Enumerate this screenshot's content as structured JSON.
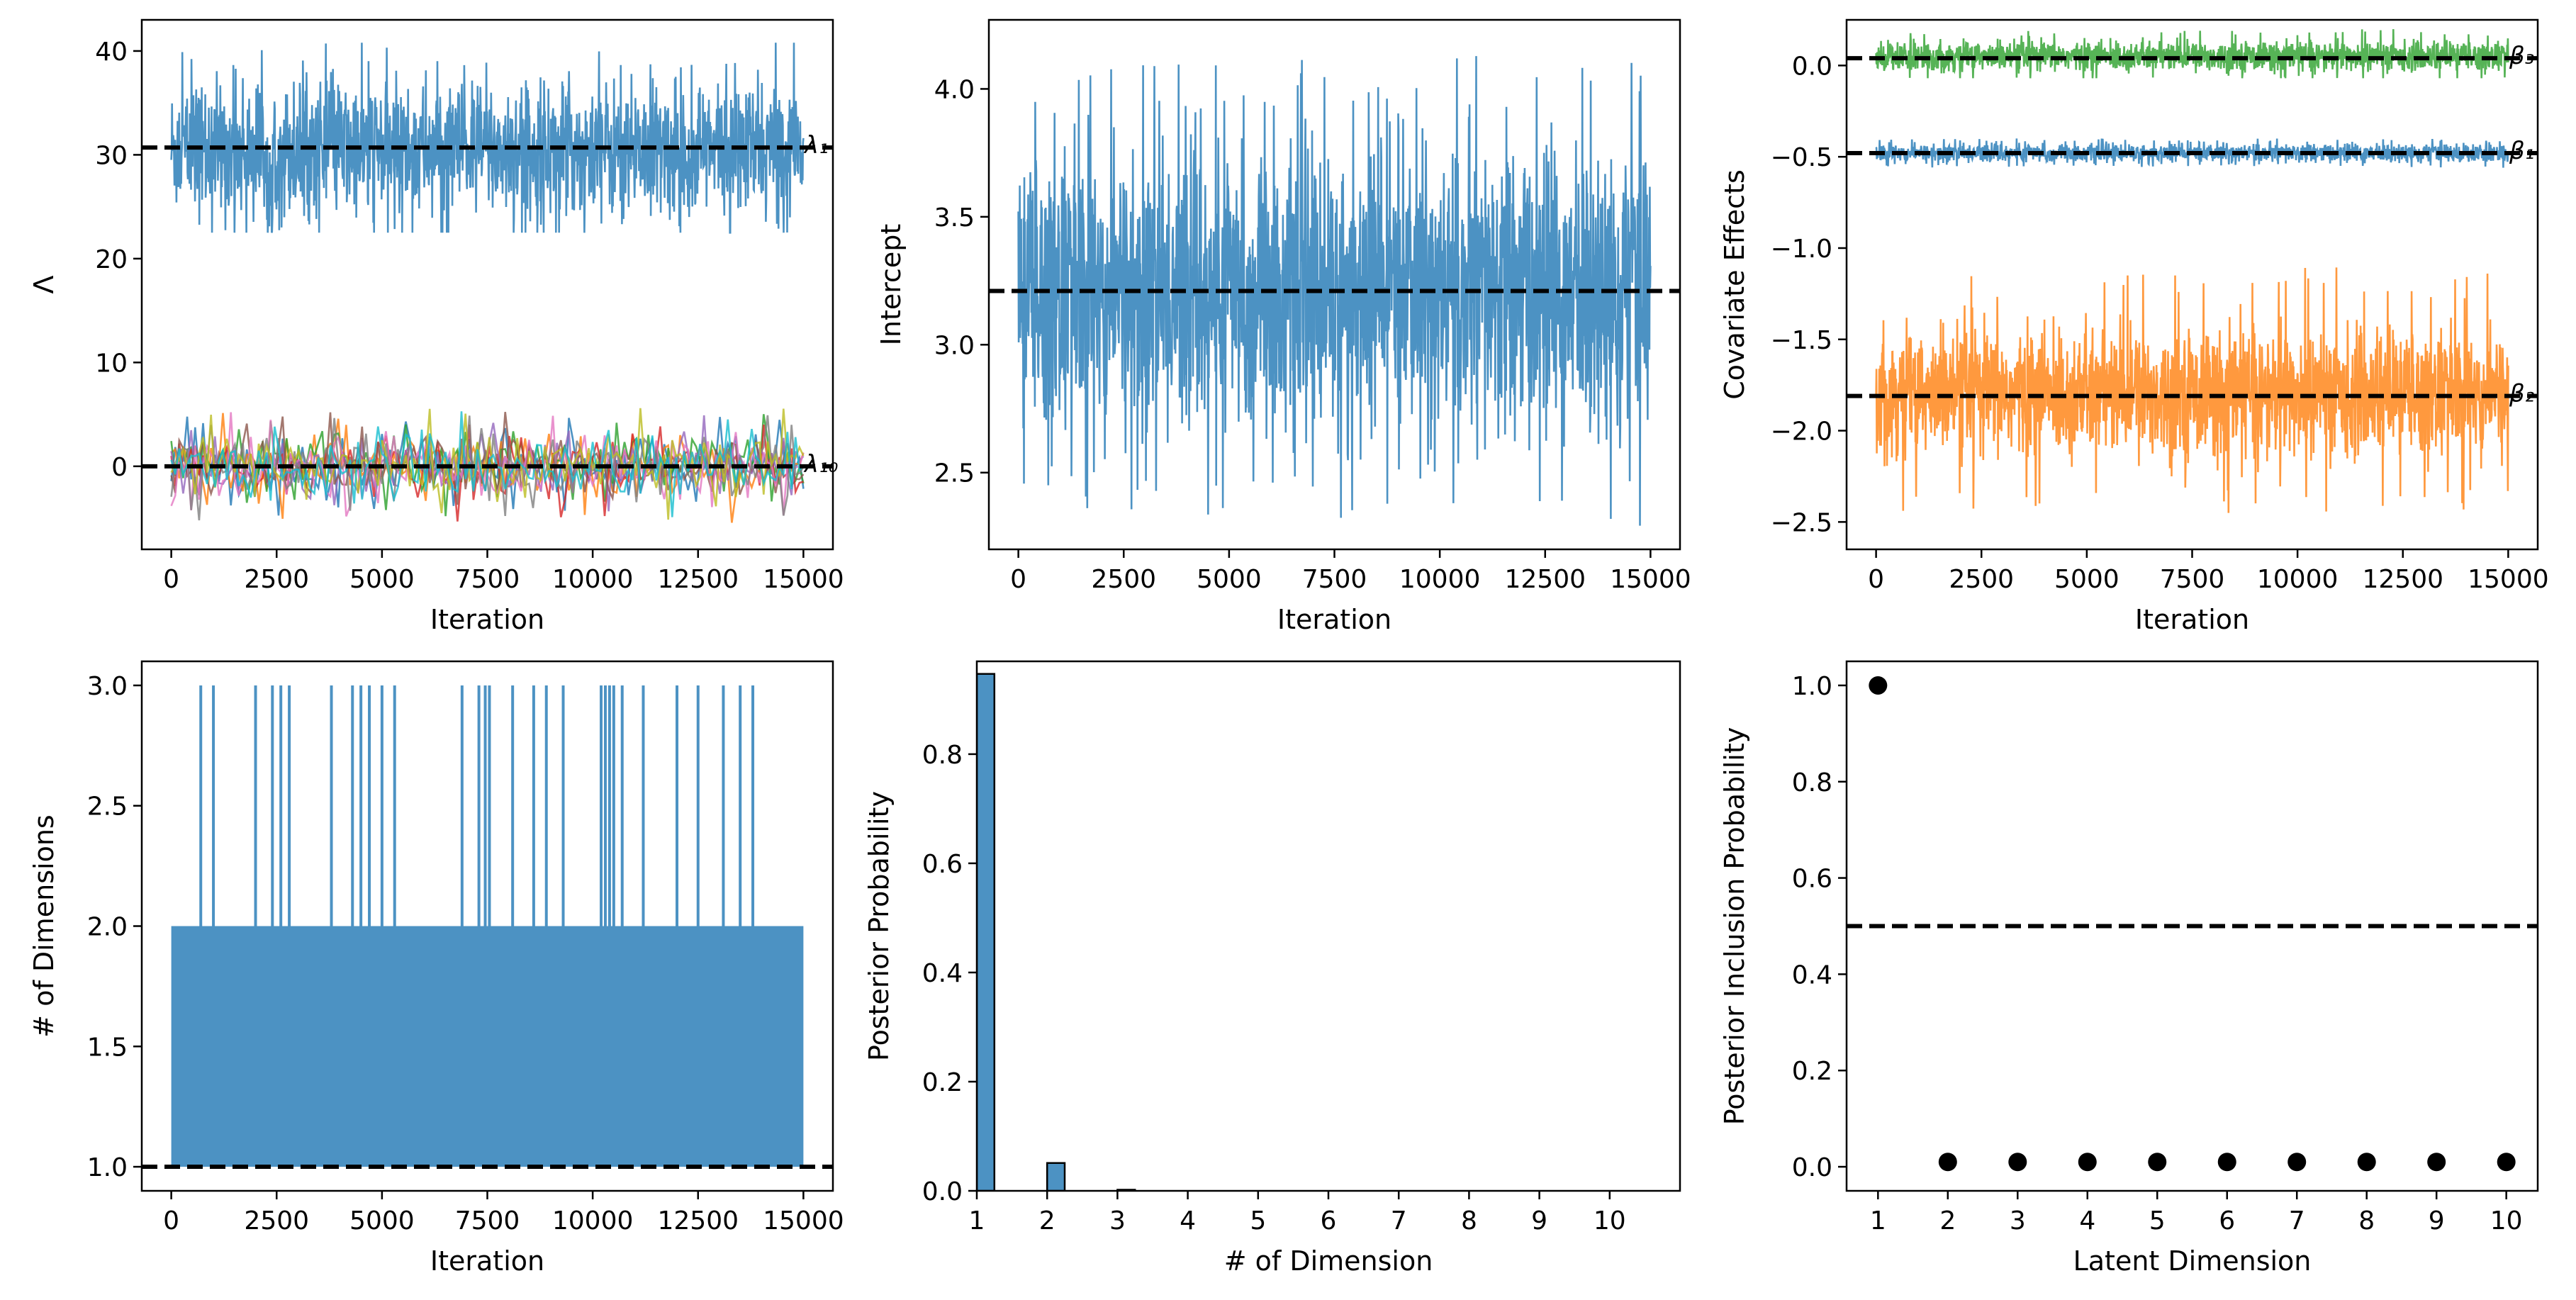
{
  "chart_data": [
    {
      "id": "lambda",
      "type": "line",
      "xlabel": "Iteration",
      "ylabel": "Λ",
      "xlim": [
        -700,
        15700
      ],
      "ylim": [
        -8,
        43
      ],
      "xticks": [
        0,
        2500,
        5000,
        7500,
        10000,
        12500,
        15000
      ],
      "yticks": [
        0,
        10,
        20,
        30,
        40
      ],
      "iterations": [
        0,
        15000
      ],
      "series": [
        {
          "name": "λ1",
          "center": 30.5,
          "spread": 3.2,
          "min": 22.5,
          "max": 40.8,
          "color": "#1f77b4"
        },
        {
          "name": "λ2..λ10",
          "center": 0.0,
          "spread": 1.6,
          "min": -5.5,
          "max": 5.6,
          "colors": [
            "#1f77b4",
            "#ff7f0e",
            "#2ca02c",
            "#d62728",
            "#9467bd",
            "#8c564b",
            "#e377c2",
            "#7f7f7f",
            "#bcbd22",
            "#17becf"
          ]
        }
      ],
      "hlines": [
        {
          "y": 30.7,
          "label": "λ₁"
        },
        {
          "y": 0.0,
          "label": "λ₁₀"
        }
      ]
    },
    {
      "id": "intercept",
      "type": "line",
      "xlabel": "Iteration",
      "ylabel": "Intercept",
      "xlim": [
        -700,
        15700
      ],
      "ylim": [
        2.2,
        4.27
      ],
      "xticks": [
        0,
        2500,
        5000,
        7500,
        10000,
        12500,
        15000
      ],
      "yticks": [
        2.5,
        3.0,
        3.5,
        4.0
      ],
      "iterations": [
        0,
        15000
      ],
      "series": [
        {
          "name": "intercept",
          "center": 3.2,
          "spread": 0.27,
          "min": 2.28,
          "max": 4.13,
          "color": "#1f77b4"
        }
      ],
      "hlines": [
        {
          "y": 3.21,
          "label": ""
        }
      ]
    },
    {
      "id": "covariates",
      "type": "line",
      "xlabel": "Iteration",
      "ylabel": "Covariate Effects",
      "xlim": [
        -700,
        15700
      ],
      "ylim": [
        -2.65,
        0.25
      ],
      "xticks": [
        0,
        2500,
        5000,
        7500,
        10000,
        12500,
        15000
      ],
      "yticks": [
        -2.5,
        -2.0,
        -1.5,
        -1.0,
        -0.5,
        0.0
      ],
      "iterations": [
        0,
        15000
      ],
      "series": [
        {
          "name": "β3",
          "center": 0.05,
          "spread": 0.04,
          "min": -0.07,
          "max": 0.2,
          "color": "#2ca02c"
        },
        {
          "name": "β1",
          "center": -0.48,
          "spread": 0.025,
          "min": -0.56,
          "max": -0.4,
          "color": "#1f77b4"
        },
        {
          "name": "β2",
          "center": -1.8,
          "spread": 0.17,
          "min": -2.52,
          "max": -1.1,
          "color": "#ff7f0e"
        }
      ],
      "hlines": [
        {
          "y": 0.04,
          "label": "β₃"
        },
        {
          "y": -0.48,
          "label": "β₁"
        },
        {
          "y": -1.81,
          "label": "β₂"
        }
      ]
    },
    {
      "id": "dimensions_trace",
      "type": "line",
      "xlabel": "Iteration",
      "ylabel": "# of Dimensions",
      "xlim": [
        -700,
        15700
      ],
      "ylim": [
        0.9,
        3.1
      ],
      "xticks": [
        0,
        2500,
        5000,
        7500,
        10000,
        12500,
        15000
      ],
      "yticks": [
        1.0,
        1.5,
        2.0,
        2.5,
        3.0
      ],
      "iterations": [
        0,
        15000
      ],
      "spikes_to_3": [
        700,
        1000,
        2000,
        2400,
        2600,
        2800,
        3800,
        4300,
        4500,
        4700,
        5000,
        5300,
        6900,
        7300,
        7450,
        7550,
        8100,
        8600,
        8900,
        9300,
        10200,
        10300,
        10400,
        10500,
        10700,
        11200,
        12000,
        12500,
        13100,
        13500,
        13800
      ],
      "hlines": [
        {
          "y": 1.0,
          "label": ""
        }
      ]
    },
    {
      "id": "dimension_hist",
      "type": "bar",
      "xlabel": "# of Dimension",
      "ylabel": "Posterior Probability",
      "xlim": [
        1,
        11
      ],
      "ylim": [
        0,
        0.97
      ],
      "xticks": [
        1,
        2,
        3,
        4,
        5,
        6,
        7,
        8,
        9,
        10
      ],
      "yticks": [
        0.0,
        0.2,
        0.4,
        0.6,
        0.8
      ],
      "categories": [
        1,
        2,
        3
      ],
      "values": [
        0.947,
        0.051,
        0.002
      ],
      "color": "#1f77b4"
    },
    {
      "id": "inclusion",
      "type": "scatter",
      "xlabel": "Latent Dimension",
      "ylabel": "Posterior Inclusion Probability",
      "xlim": [
        0.55,
        10.45
      ],
      "ylim": [
        -0.05,
        1.05
      ],
      "xticks": [
        1,
        2,
        3,
        4,
        5,
        6,
        7,
        8,
        9,
        10
      ],
      "yticks": [
        0.0,
        0.2,
        0.4,
        0.6,
        0.8,
        1.0
      ],
      "x": [
        1,
        2,
        3,
        4,
        5,
        6,
        7,
        8,
        9,
        10
      ],
      "y": [
        1.0,
        0.01,
        0.01,
        0.01,
        0.01,
        0.01,
        0.01,
        0.01,
        0.01,
        0.01
      ],
      "hlines": [
        {
          "y": 0.5,
          "label": ""
        }
      ]
    }
  ]
}
